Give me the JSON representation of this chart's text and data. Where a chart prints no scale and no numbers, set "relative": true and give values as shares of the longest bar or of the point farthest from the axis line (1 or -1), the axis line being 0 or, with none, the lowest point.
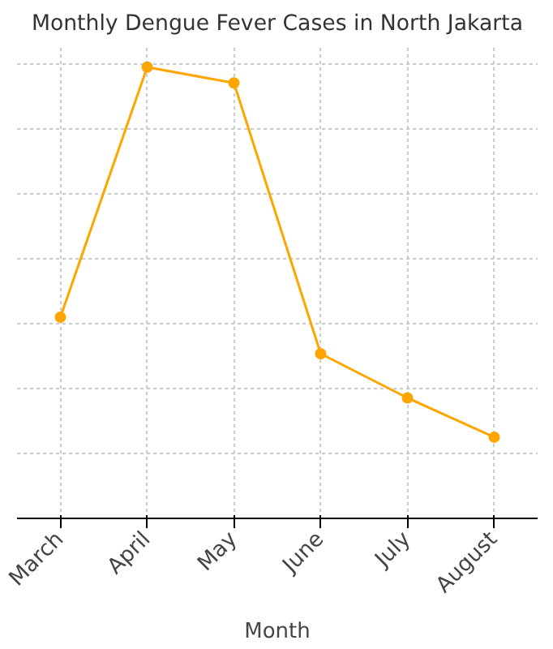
{
  "chart_data": {
    "type": "line",
    "title": "Monthly Dengue Fever Cases in North Jakarta",
    "xlabel": "Month",
    "categories": [
      "March",
      "April",
      "May",
      "June",
      "July",
      "August"
    ],
    "relative": true,
    "grid": true,
    "marker": "circle",
    "line_style": "solid",
    "series": [
      {
        "color": "#ffa500",
        "values": [
          0.446,
          1,
          0.965,
          0.365,
          0.267,
          0.18
        ]
      }
    ]
  }
}
